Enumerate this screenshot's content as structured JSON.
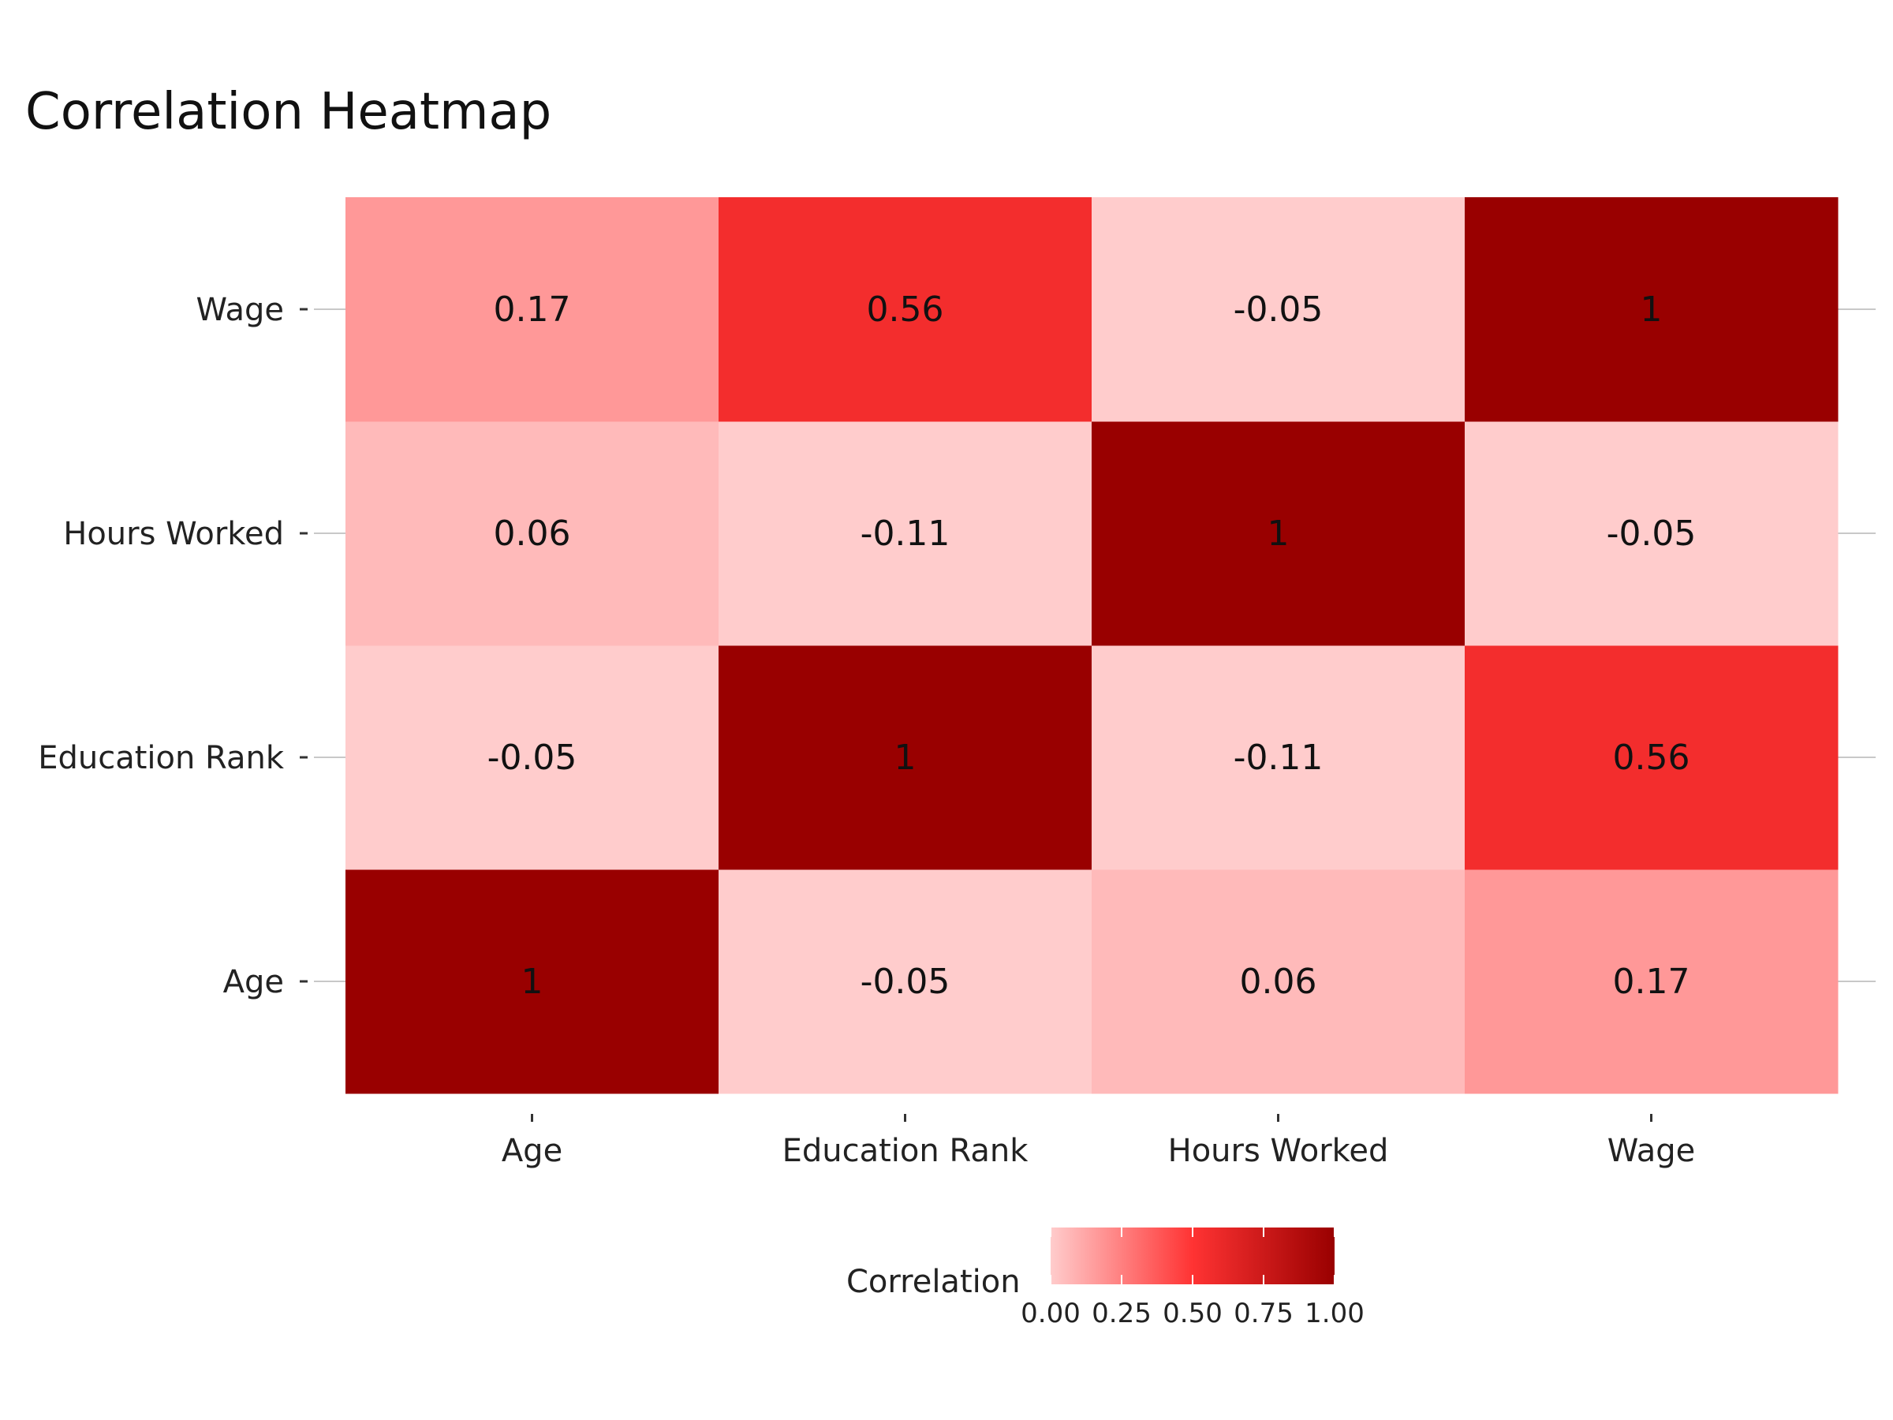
{
  "chart_data": {
    "type": "heatmap",
    "title": "Correlation Heatmap",
    "x_categories": [
      "Age",
      "Education Rank",
      "Hours Worked",
      "Wage"
    ],
    "y_categories": [
      "Age",
      "Education Rank",
      "Hours Worked",
      "Wage"
    ],
    "values": [
      [
        1,
        -0.05,
        0.06,
        0.17
      ],
      [
        -0.05,
        1,
        -0.11,
        0.56
      ],
      [
        0.06,
        -0.11,
        1,
        -0.05
      ],
      [
        0.17,
        0.56,
        -0.05,
        1
      ]
    ],
    "cell_labels": [
      [
        "1",
        "-0.05",
        "0.06",
        "0.17"
      ],
      [
        "-0.05",
        "1",
        "-0.11",
        "0.56"
      ],
      [
        "0.06",
        "-0.11",
        "1",
        "-0.05"
      ],
      [
        "0.17",
        "0.56",
        "-0.05",
        "1"
      ]
    ],
    "legend": {
      "title": "Correlation",
      "ticks": [
        "0.00",
        "0.25",
        "0.50",
        "0.75",
        "1.00"
      ],
      "tick_values": [
        0,
        0.25,
        0.5,
        0.75,
        1
      ],
      "placement": "bottom",
      "colors": [
        "#ffcccc",
        "#ff3333",
        "#990000"
      ]
    },
    "grid": true
  }
}
